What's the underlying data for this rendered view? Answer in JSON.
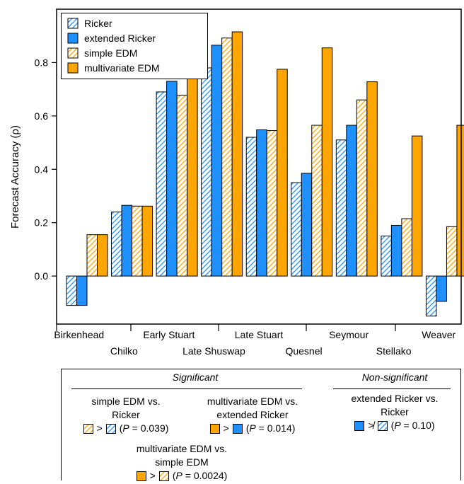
{
  "chart_data": {
    "type": "bar",
    "ylabel": "Forecast Accuracy (ρ)",
    "xlabel": "",
    "ylim": [
      -0.18,
      1.0
    ],
    "yticks": [
      0.0,
      0.2,
      0.4,
      0.6,
      0.8
    ],
    "ytick_labels": [
      "0.0",
      "0.2",
      "0.4",
      "0.6",
      "0.8"
    ],
    "categories": [
      "Birkenhead",
      "Chilko",
      "Early Stuart",
      "Late Shuswap",
      "Late Stuart",
      "Quesnel",
      "Seymour",
      "Stellako",
      "Weaver"
    ],
    "series": [
      {
        "name": "Ricker",
        "color": "#1e90ff",
        "pattern": "hatched",
        "values": [
          -0.11,
          0.24,
          0.69,
          0.78,
          0.52,
          0.35,
          0.51,
          0.15,
          -0.15
        ]
      },
      {
        "name": "extended Ricker",
        "color": "#1e90ff",
        "pattern": "solid",
        "values": [
          -0.11,
          0.265,
          0.73,
          0.865,
          0.548,
          0.385,
          0.565,
          0.19,
          -0.095
        ]
      },
      {
        "name": "simple EDM",
        "color": "#ffa500",
        "pattern": "hatched",
        "values": [
          0.155,
          0.262,
          0.678,
          0.892,
          0.545,
          0.565,
          0.66,
          0.215,
          0.185
        ]
      },
      {
        "name": "multivariate EDM",
        "color": "#ffa500",
        "pattern": "solid",
        "values": [
          0.155,
          0.262,
          0.87,
          0.915,
          0.775,
          0.855,
          0.728,
          0.525,
          0.565
        ]
      }
    ],
    "grid": false,
    "legend_position": "top-left"
  },
  "legend": {
    "items": [
      {
        "label": "Ricker",
        "color": "#1e90ff",
        "pattern": "hatched"
      },
      {
        "label": "extended Ricker",
        "color": "#1e90ff",
        "pattern": "solid"
      },
      {
        "label": "simple EDM",
        "color": "#ffa500",
        "pattern": "hatched"
      },
      {
        "label": "multivariate EDM",
        "color": "#ffa500",
        "pattern": "solid"
      }
    ]
  },
  "significance": {
    "significant_heading": "Significant",
    "nonsignificant_heading": "Non-significant",
    "comparisons": [
      {
        "title_line1": "simple EDM vs.",
        "title_line2": "Ricker",
        "symbol": ">",
        "p_label": "P",
        "p_value": "= 0.039",
        "left_color": "#ffa500",
        "left_pattern": "hatched",
        "right_color": "#1e90ff",
        "right_pattern": "hatched"
      },
      {
        "title_line1": "multivariate EDM vs.",
        "title_line2": "extended Ricker",
        "symbol": ">",
        "p_label": "P",
        "p_value": "= 0.014",
        "left_color": "#ffa500",
        "left_pattern": "solid",
        "right_color": "#1e90ff",
        "right_pattern": "solid"
      },
      {
        "title_line1": "multivariate EDM vs.",
        "title_line2": "simple EDM",
        "symbol": ">",
        "p_label": "P",
        "p_value": "= 0.0024",
        "left_color": "#ffa500",
        "left_pattern": "solid",
        "right_color": "#ffa500",
        "right_pattern": "hatched"
      },
      {
        "title_line1": "extended Ricker vs.",
        "title_line2": "Ricker",
        "symbol": "≯",
        "p_label": "P",
        "p_value": "= 0.10",
        "left_color": "#1e90ff",
        "left_pattern": "solid",
        "right_color": "#1e90ff",
        "right_pattern": "hatched"
      }
    ]
  }
}
